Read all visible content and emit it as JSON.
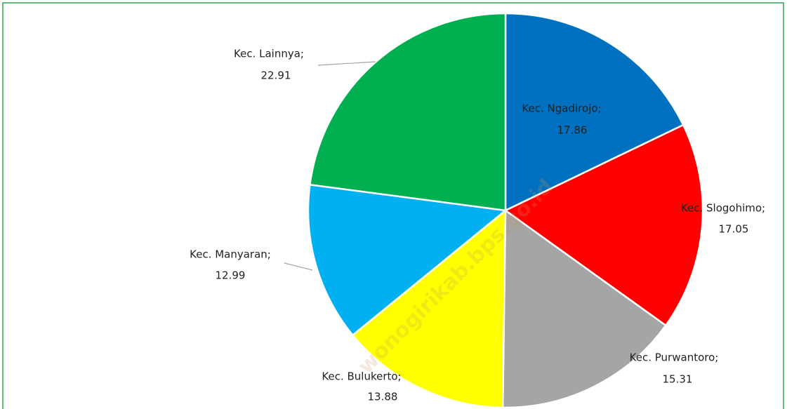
{
  "chart_data": {
    "type": "pie",
    "categories": [
      "Kec. Ngadirojo;",
      "Kec. Slogohimo;",
      "Kec. Purwantoro;",
      "Kec. Bulukerto;",
      "Kec. Manyaran;",
      "Kec. Lainnya;"
    ],
    "values": [
      17.86,
      17.05,
      15.31,
      13.88,
      12.99,
      22.91
    ],
    "colors": [
      "#0070c0",
      "#ff0000",
      "#a5a5a5",
      "#ffff00",
      "#00b0f0",
      "#00b050"
    ],
    "annotation": "wonogirikab.bps.go.id"
  }
}
